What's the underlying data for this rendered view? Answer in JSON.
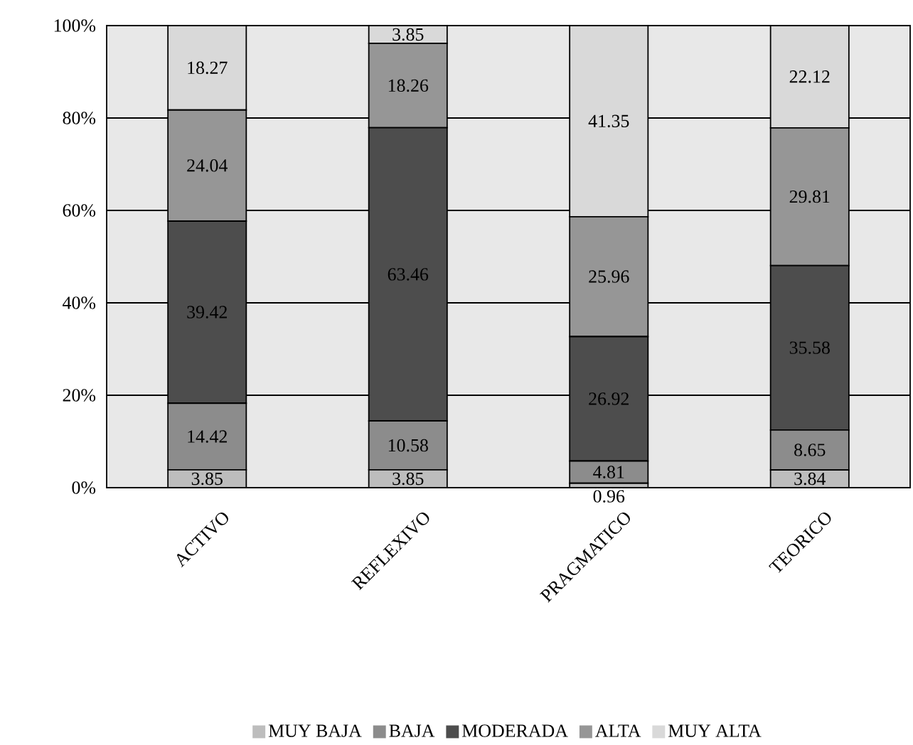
{
  "chart_data": {
    "type": "bar",
    "stacked": true,
    "categories": [
      "ACTIVO",
      "REFLEXIVO",
      "PRAGMATICO",
      "TEORICO"
    ],
    "series": [
      {
        "name": "MUY BAJA",
        "color": "#bdbdbd",
        "values": [
          3.85,
          3.85,
          0.96,
          3.84
        ]
      },
      {
        "name": "BAJA",
        "color": "#8c8c8c",
        "values": [
          14.42,
          10.58,
          4.81,
          8.65
        ]
      },
      {
        "name": "MODERADA",
        "color": "#4d4d4d",
        "values": [
          39.42,
          63.46,
          26.92,
          35.58
        ]
      },
      {
        "name": "ALTA",
        "color": "#969696",
        "values": [
          24.04,
          18.26,
          25.96,
          29.81
        ]
      },
      {
        "name": "MUY ALTA",
        "color": "#d9d9d9",
        "values": [
          18.27,
          3.85,
          41.35,
          22.12
        ]
      }
    ],
    "ylim": [
      0,
      100
    ],
    "yticks": [
      {
        "value": 0,
        "label": "0%"
      },
      {
        "value": 20,
        "label": "20%"
      },
      {
        "value": 40,
        "label": "40%"
      },
      {
        "value": 60,
        "label": "60%"
      },
      {
        "value": 80,
        "label": "80%"
      },
      {
        "value": 100,
        "label": "100%"
      }
    ],
    "grid": "y",
    "legend": "bottom",
    "data_labels": true
  }
}
